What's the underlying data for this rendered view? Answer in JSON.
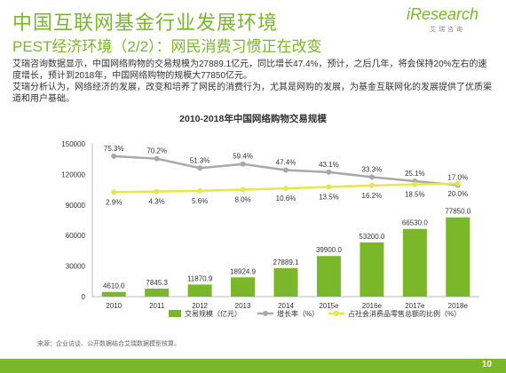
{
  "header": {
    "title": "中国互联网基金行业发展环境",
    "subtitle": "PEST经济环境（2/2）：网民消费习惯正在改变",
    "logo_text": "iResearch",
    "logo_sub": "艾瑞咨询"
  },
  "body": {
    "paragraph1": "艾瑞咨询数据显示，中国网络购物的交易规模为27889.1亿元，同比增长47.4%，预计，之后几年，将会保持20%左右的速度增长，预计到2018年，中国网络购物的规模大77850亿元。",
    "paragraph2": "艾瑞分析认为，网络经济的发展，改变和培养了网民的消费行为，尤其是网购的发展，为基金互联网化的发展提供了优质渠道和用户基础。"
  },
  "footer": {
    "source": "来源：企业访谈、公开数据结合艾瑞数据模型核算。",
    "page": "10"
  },
  "colors": {
    "brand": "#7ab829",
    "bar": "#7ab829",
    "growth_line": "#a9a9a9",
    "share_line": "#e6e64f"
  },
  "chart_data": {
    "type": "bar",
    "title": "2010-2018年中国网络购物交易规模",
    "categories": [
      "2010",
      "2011",
      "2012",
      "2013",
      "2014",
      "2015e",
      "2016e",
      "2017e",
      "2018e"
    ],
    "ylim": [
      0,
      150000
    ],
    "yticks": [
      "0",
      "30000",
      "60000",
      "90000",
      "120000",
      "150000"
    ],
    "series": [
      {
        "name": "交易规模（亿元）",
        "type": "bar",
        "values": [
          4610.0,
          7845.3,
          11870.9,
          18924.9,
          27889.1,
          39900.0,
          53200.0,
          66530.0,
          77850.0
        ],
        "labels": [
          "4610.0",
          "7845.3",
          "11870.9",
          "18924.9",
          "27889.1",
          "39900.0",
          "53200.0",
          "66530.0",
          "77850.0"
        ]
      },
      {
        "name": "增长率（%）",
        "type": "line",
        "values": [
          75.3,
          70.2,
          51.3,
          59.4,
          47.4,
          43.1,
          33.3,
          25.1,
          17.0
        ],
        "labels": [
          "75.3%",
          "70.2%",
          "51.3%",
          "59.4%",
          "47.4%",
          "43.1%",
          "33.3%",
          "25.1%",
          "17.0%"
        ]
      },
      {
        "name": "占社会消费品零售总额的比例（%）",
        "type": "line",
        "values": [
          2.9,
          4.3,
          5.6,
          8.0,
          10.6,
          13.5,
          16.2,
          18.5,
          20.0
        ],
        "labels": [
          "2.9%",
          "4.3%",
          "5.6%",
          "8.0%",
          "10.6%",
          "13.5%",
          "16.2%",
          "18.5%",
          "20.0%"
        ]
      }
    ],
    "legend_position": "bottom"
  }
}
